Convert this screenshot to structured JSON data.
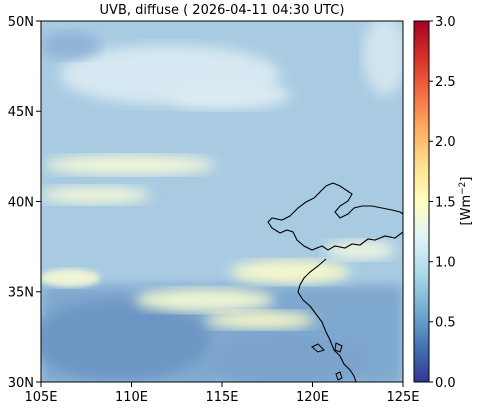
{
  "title": "UVB, diffuse ( 2026-04-11 04:30 UTC)",
  "map": {
    "lon_range": [
      105,
      125
    ],
    "lat_range": [
      30,
      50
    ],
    "x_ticks": [
      "105E",
      "110E",
      "115E",
      "120E",
      "125E"
    ],
    "y_ticks": [
      "30N",
      "35N",
      "40N",
      "45N",
      "50N"
    ],
    "background_color": "#a9cbe2"
  },
  "colorbar": {
    "label_base": "[Wm",
    "label_exp": "−2",
    "label_end": "]",
    "range": [
      0.0,
      3.0
    ],
    "ticks": [
      "0.0",
      "0.5",
      "1.0",
      "1.5",
      "2.0",
      "2.5",
      "3.0"
    ],
    "colormap": "RdYlBu_r",
    "stops": [
      "#313695",
      "#4575b4",
      "#74add1",
      "#abd9e9",
      "#e0f3f8",
      "#ffffbf",
      "#fee090",
      "#fdae61",
      "#f46d43",
      "#d73027",
      "#a50026"
    ]
  }
}
